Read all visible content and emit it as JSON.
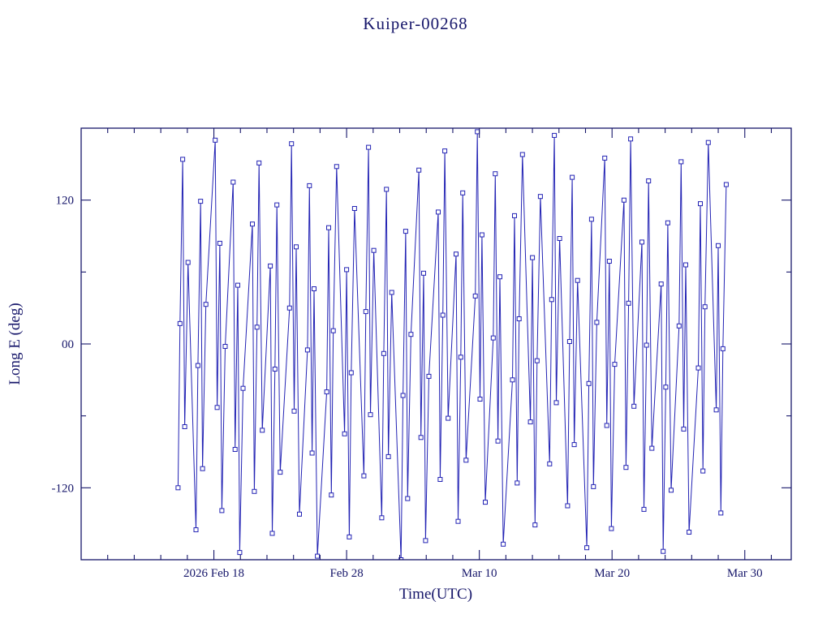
{
  "chart_data": {
    "type": "line",
    "marker": "open-square",
    "title": "Kuiper-00268",
    "xlabel": "Time(UTC)",
    "ylabel": "Long E (deg)",
    "xlim": [
      0,
      53.5
    ],
    "ylim": [
      -180,
      180
    ],
    "x_unit_note": "x values are days measured on the time axis; tick marks fall at the labeled calendar dates",
    "grid": false,
    "legend": "none",
    "colors": {
      "data": "#2323b4",
      "axis": "#16166a",
      "text": "#16166a",
      "background": "#ffffff"
    },
    "x_axis": {
      "major_ticks": [
        {
          "value": 10,
          "label": "2026 Feb 18"
        },
        {
          "value": 20,
          "label": "Feb 28"
        },
        {
          "value": 30,
          "label": "Mar 10"
        },
        {
          "value": 40,
          "label": "Mar 20"
        },
        {
          "value": 50,
          "label": "Mar 30"
        }
      ],
      "minor_step": 2
    },
    "y_axis": {
      "major_ticks": [
        {
          "value": -120,
          "label": "-120"
        },
        {
          "value": 0,
          "label": "00"
        },
        {
          "value": 120,
          "label": "120"
        }
      ],
      "minor_step": 60
    },
    "series": [
      {
        "name": "Long E",
        "x": [
          7.3,
          7.45,
          7.65,
          7.8,
          8.05,
          8.65,
          8.8,
          9,
          9.15,
          9.4,
          10.1,
          10.25,
          10.45,
          10.6,
          10.85,
          11.45,
          11.6,
          11.8,
          11.95,
          12.2,
          12.9,
          13.05,
          13.25,
          13.4,
          13.65,
          14.25,
          14.4,
          14.6,
          14.75,
          15,
          15.7,
          15.85,
          16.05,
          16.2,
          16.45,
          17.05,
          17.2,
          17.4,
          17.55,
          17.8,
          18.5,
          18.65,
          18.85,
          19,
          19.25,
          19.85,
          20,
          20.2,
          20.35,
          20.6,
          21.3,
          21.45,
          21.65,
          21.8,
          22.05,
          22.65,
          22.8,
          23,
          23.15,
          23.4,
          24.1,
          24.25,
          24.45,
          24.6,
          24.85,
          25.45,
          25.6,
          25.8,
          25.95,
          26.2,
          26.9,
          27.05,
          27.25,
          27.4,
          27.65,
          28.25,
          28.4,
          28.6,
          28.75,
          29,
          29.7,
          29.85,
          30.05,
          30.2,
          30.45,
          31.05,
          31.2,
          31.4,
          31.55,
          31.8,
          32.5,
          32.65,
          32.85,
          33,
          33.25,
          33.85,
          34,
          34.2,
          34.35,
          34.6,
          35.3,
          35.45,
          35.65,
          35.8,
          36.05,
          36.65,
          36.8,
          37,
          37.15,
          37.4,
          38.1,
          38.25,
          38.45,
          38.6,
          38.85,
          39.45,
          39.6,
          39.8,
          39.95,
          40.2,
          40.9,
          41.05,
          41.25,
          41.4,
          41.65,
          42.25,
          42.4,
          42.6,
          42.75,
          43,
          43.7,
          43.85,
          44.05,
          44.2,
          44.45,
          45.05,
          45.2,
          45.4,
          45.55,
          45.8,
          46.5,
          46.65,
          46.85,
          47,
          47.25,
          47.85,
          48,
          48.2,
          48.35,
          48.6
        ],
        "y": [
          -120,
          17,
          154,
          -69,
          68,
          -155,
          -18,
          119,
          -104,
          33,
          170,
          -53,
          84,
          -139,
          -2,
          135,
          -88,
          49,
          -174,
          -37,
          100,
          -123,
          14,
          151,
          -72,
          65,
          -158,
          -21,
          116,
          -107,
          30,
          167,
          -56,
          81,
          -142,
          -5,
          132,
          -91,
          46,
          -177,
          -40,
          97,
          -126,
          11,
          148,
          -75,
          62,
          -161,
          -24,
          113,
          -110,
          27,
          164,
          -59,
          78,
          -145,
          -8,
          129,
          -94,
          43,
          -180,
          -43,
          94,
          -129,
          8,
          145,
          -78,
          59,
          -164,
          -27,
          110,
          -113,
          24,
          161,
          -62,
          75,
          -148,
          -11,
          126,
          -97,
          40,
          177,
          -46,
          91,
          -132,
          5,
          142,
          -81,
          56,
          -167,
          -30,
          107,
          -116,
          21,
          158,
          -65,
          72,
          -151,
          -14,
          123,
          -100,
          37,
          174,
          -49,
          88,
          -135,
          2,
          139,
          -84,
          53,
          -170,
          -33,
          104,
          -119,
          18,
          155,
          -68,
          69,
          -154,
          -17,
          120,
          -103,
          34,
          171,
          -52,
          85,
          -138,
          -1,
          136,
          -87,
          50,
          -173,
          -36,
          101,
          -122,
          15,
          152,
          -71,
          66,
          -157,
          -20,
          117,
          -106,
          31,
          168,
          -55,
          82,
          -141,
          -4,
          133
        ]
      }
    ]
  }
}
